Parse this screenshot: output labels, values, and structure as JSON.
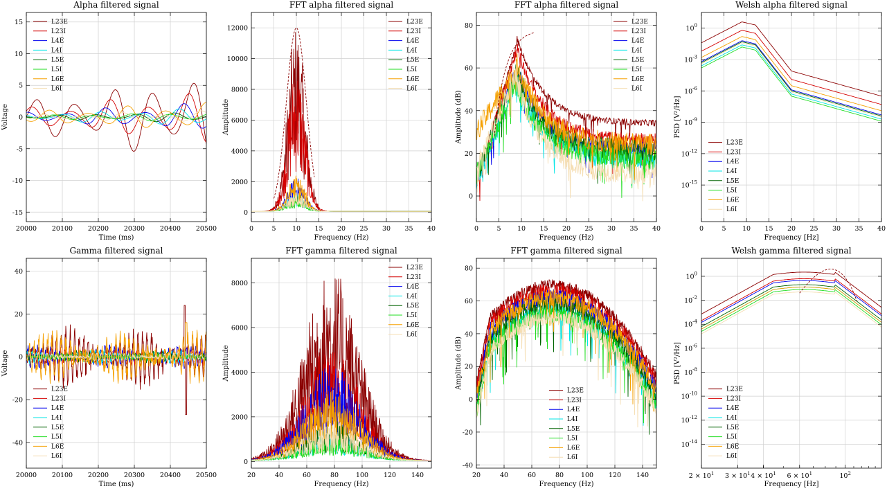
{
  "legend_labels": [
    "L23E",
    "L23I",
    "L4E",
    "L4I",
    "L5E",
    "L5I",
    "L6E",
    "L6I"
  ],
  "colors": {
    "L23E": "#8b0000",
    "L23I": "#d40000",
    "L4E": "#0000ee",
    "L4I": "#00e5e5",
    "L5E": "#006400",
    "L5I": "#22dd22",
    "L6E": "#f5a000",
    "L6I": "#f5deb3"
  },
  "chart_data": [
    {
      "id": "p1",
      "type": "line",
      "title": "Alpha filtered signal",
      "xlabel": "Time (ms)",
      "ylabel": "Voltage",
      "xlim": [
        20000,
        20500
      ],
      "ylim": [
        -16.5,
        16.5
      ],
      "grid": true,
      "legend": "top-left",
      "xticks": [
        20000,
        20100,
        20200,
        20300,
        20400,
        20500
      ],
      "yticks": [
        -15,
        -10,
        -5,
        0,
        5,
        10,
        15
      ],
      "series_peak": {
        "L23E": 7.5,
        "L23I": 4.3,
        "L4E": 2.3,
        "L4I": 1.5,
        "L5E": 0.9,
        "L5I": 0.8,
        "L6E": 2.5,
        "L6I": 1.0
      }
    },
    {
      "id": "p2",
      "type": "line",
      "title": "FFT alpha filtered signal",
      "xlabel": "Frequency (Hz)",
      "ylabel": "Amplitude",
      "xlim": [
        0,
        40
      ],
      "ylim": [
        -600,
        13000
      ],
      "grid": true,
      "legend": "top-right",
      "xticks": [
        0,
        5,
        10,
        15,
        20,
        25,
        30,
        35,
        40
      ],
      "yticks": [
        0,
        2000,
        4000,
        6000,
        8000,
        10000,
        12000
      ],
      "peak_frequency_hz": 9,
      "series_peak": {
        "L23E": 12300,
        "L23I": 9600,
        "L4E": 2200,
        "L4I": 1300,
        "L5E": 1200,
        "L5I": 800,
        "L6E": 2400,
        "L6I": 1300
      }
    },
    {
      "id": "p3",
      "type": "line",
      "title": "FFT alpha filtered signal",
      "xlabel": "Frequency (Hz)",
      "ylabel": "Amplitude (dB)",
      "xlim": [
        0,
        40
      ],
      "ylim": [
        -12,
        86
      ],
      "grid": true,
      "legend": "top-right",
      "xticks": [
        0,
        5,
        10,
        15,
        20,
        25,
        30,
        35,
        40
      ],
      "yticks": [
        0,
        20,
        40,
        60,
        80
      ],
      "series_peak_db": {
        "L23E": 82,
        "L23I": 78,
        "L4E": 68,
        "L4I": 62,
        "L5E": 66,
        "L5I": 60,
        "L6E": 70,
        "L6I": 62
      },
      "series_tail_db": {
        "L23E": 34,
        "L23I": 26,
        "L4E": 22,
        "L4I": 18,
        "L5E": 21,
        "L5I": 17,
        "L6E": 24,
        "L6I": 10
      }
    },
    {
      "id": "p4",
      "type": "line",
      "title": "Welsh alpha filtered signal",
      "xlabel": "Frequency [Hz]",
      "ylabel": "PSD [V²/Hz]",
      "xlim": [
        0,
        40
      ],
      "ylog": true,
      "ylim_exp": [
        -18.5,
        1.5
      ],
      "grid": true,
      "legend": "bottom-left",
      "xticks": [
        0,
        5,
        10,
        15,
        20,
        25,
        30,
        35,
        40
      ],
      "yticks_exp": [
        0,
        -3,
        -6,
        -9,
        -12,
        -15
      ],
      "series_peak_exp": {
        "L23E": 0.6,
        "L23I": -0.2,
        "L4E": -1.2,
        "L4I": -1.6,
        "L5E": -1.3,
        "L5I": -1.8,
        "L6E": -0.8,
        "L6I": -1.4
      }
    },
    {
      "id": "p5",
      "type": "line",
      "title": "Gamma filtered signal",
      "xlabel": "Time (ms)",
      "ylabel": "Voltage",
      "xlim": [
        20000,
        20500
      ],
      "ylim": [
        -52,
        46
      ],
      "grid": true,
      "legend": "bottom-left",
      "xticks": [
        20000,
        20100,
        20200,
        20300,
        20400,
        20500
      ],
      "yticks": [
        -40,
        -20,
        0,
        20,
        40
      ],
      "series_peak": {
        "L23E": 25,
        "L23I": 8,
        "L4E": 10,
        "L4I": 6,
        "L5E": 5,
        "L5I": 4,
        "L6E": 22,
        "L6I": 4
      }
    },
    {
      "id": "p6",
      "type": "line",
      "title": "FFT gamma filtered signal",
      "xlabel": "Frequency (Hz)",
      "ylabel": "Amplitude",
      "xlim": [
        20,
        150
      ],
      "ylim": [
        -300,
        9100
      ],
      "grid": true,
      "legend": "top-right",
      "xticks": [
        20,
        40,
        60,
        80,
        100,
        120,
        140
      ],
      "yticks": [
        0,
        2000,
        4000,
        6000,
        8000
      ],
      "peak_frequency_hz": 80,
      "series_peak": {
        "L23E": 8600,
        "L23I": 5200,
        "L4E": 4300,
        "L4I": 1300,
        "L5E": 1800,
        "L5I": 1100,
        "L6E": 3200,
        "L6I": 1800
      }
    },
    {
      "id": "p7",
      "type": "line",
      "title": "FFT gamma filtered signal",
      "xlabel": "Frequency (Hz)",
      "ylabel": "Amplitude (dB)",
      "xlim": [
        20,
        150
      ],
      "ylim": [
        -42,
        86
      ],
      "grid": true,
      "legend": "bottom-center",
      "xticks": [
        20,
        40,
        60,
        80,
        100,
        120,
        140
      ],
      "yticks": [
        -40,
        -20,
        0,
        20,
        40,
        60,
        80
      ],
      "series_peak_db": {
        "L23E": 78,
        "L23I": 74,
        "L4E": 70,
        "L4I": 62,
        "L5E": 66,
        "L5I": 60,
        "L6E": 70,
        "L6I": 58
      }
    },
    {
      "id": "p8",
      "type": "line",
      "title": "Welsh gamma filtered signal",
      "xlabel": "Frequency [Hz]",
      "ylabel": "PSD [V²/Hz]",
      "xlog": true,
      "xlim": [
        20,
        150
      ],
      "ylog": true,
      "ylim_exp": [
        -16,
        1.5
      ],
      "grid": true,
      "legend": "bottom-left",
      "xticks_major": [
        100
      ],
      "xticks_minor_labeled": [
        20,
        30,
        40,
        60
      ],
      "yticks_exp": [
        0,
        -2,
        -4,
        -6,
        -8,
        -10,
        -12,
        -14
      ],
      "series_peak_exp": {
        "L23E": 0.35,
        "L23I": -0.2,
        "L4E": -0.35,
        "L4I": -0.9,
        "L5E": -0.7,
        "L5I": -1.1,
        "L6E": -0.9,
        "L6I": -1.3
      }
    }
  ]
}
